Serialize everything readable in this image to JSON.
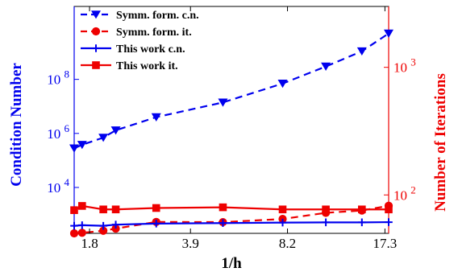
{
  "chart_data": {
    "type": "line",
    "xlabel": "1/h",
    "ylabel_left": "Condition Number",
    "ylabel_right": "Number of Iterations",
    "x_scale": "log",
    "y_left_scale": "log",
    "y_right_scale": "log",
    "xlim": [
      1.6,
      17.8
    ],
    "ylim_left": [
      200,
      50000000000
    ],
    "ylim_right": [
      50,
      3000
    ],
    "x_ticks": [
      1.8,
      3.9,
      8.2,
      17.3
    ],
    "x_tick_labels": [
      "1.8",
      "3.9",
      "8.2",
      "17.3"
    ],
    "y_left_ticks": [
      10000,
      1000000,
      100000000
    ],
    "y_left_tick_labels": [
      {
        "base": "10",
        "exp": "4"
      },
      {
        "base": "10",
        "exp": "6"
      },
      {
        "base": "10",
        "exp": "8"
      }
    ],
    "y_right_ticks": [
      100,
      1000
    ],
    "y_right_tick_labels": [
      {
        "base": "10",
        "exp": "2"
      },
      {
        "base": "10",
        "exp": "3"
      }
    ],
    "legend_position": "top-left",
    "colors": {
      "left_axis": "#0000ee",
      "right_axis": "#ee0000"
    },
    "series": [
      {
        "name": "Symm. form. c.n.",
        "axis": "left",
        "color": "#0000ee",
        "style": "dashed",
        "marker": "triangle-down",
        "x": [
          1.6,
          1.7,
          2.0,
          2.2,
          3.0,
          5.0,
          7.9,
          11.0,
          14.5,
          17.8
        ],
        "y": [
          280000,
          380000,
          700000,
          1300000,
          4000000,
          14000000,
          70000000,
          300000000,
          1100000000,
          5000000000
        ]
      },
      {
        "name": "Symm. form. it.",
        "axis": "left",
        "color": "#ee0000",
        "style": "dashed",
        "marker": "circle",
        "x": [
          1.6,
          1.7,
          2.0,
          2.2,
          3.0,
          5.0,
          7.9,
          11.0,
          14.5,
          17.8
        ],
        "y": [
          200,
          210,
          250,
          300,
          530,
          520,
          680,
          1150,
          1400,
          2100
        ]
      },
      {
        "name": "This work c.n.",
        "axis": "left",
        "color": "#0000ee",
        "style": "solid",
        "marker": "plus",
        "x": [
          1.6,
          1.7,
          2.0,
          2.2,
          3.0,
          5.0,
          7.9,
          11.0,
          14.5,
          17.8
        ],
        "y": [
          380,
          400,
          380,
          420,
          460,
          480,
          500,
          510,
          510,
          520
        ]
      },
      {
        "name": "This work it.",
        "axis": "right",
        "color": "#ee0000",
        "style": "solid",
        "marker": "square",
        "x": [
          1.6,
          1.7,
          2.0,
          2.2,
          3.0,
          5.0,
          7.9,
          11.0,
          14.5,
          17.8
        ],
        "y": [
          76,
          82,
          77,
          77,
          79,
          80,
          77,
          77,
          77,
          77
        ]
      }
    ]
  }
}
